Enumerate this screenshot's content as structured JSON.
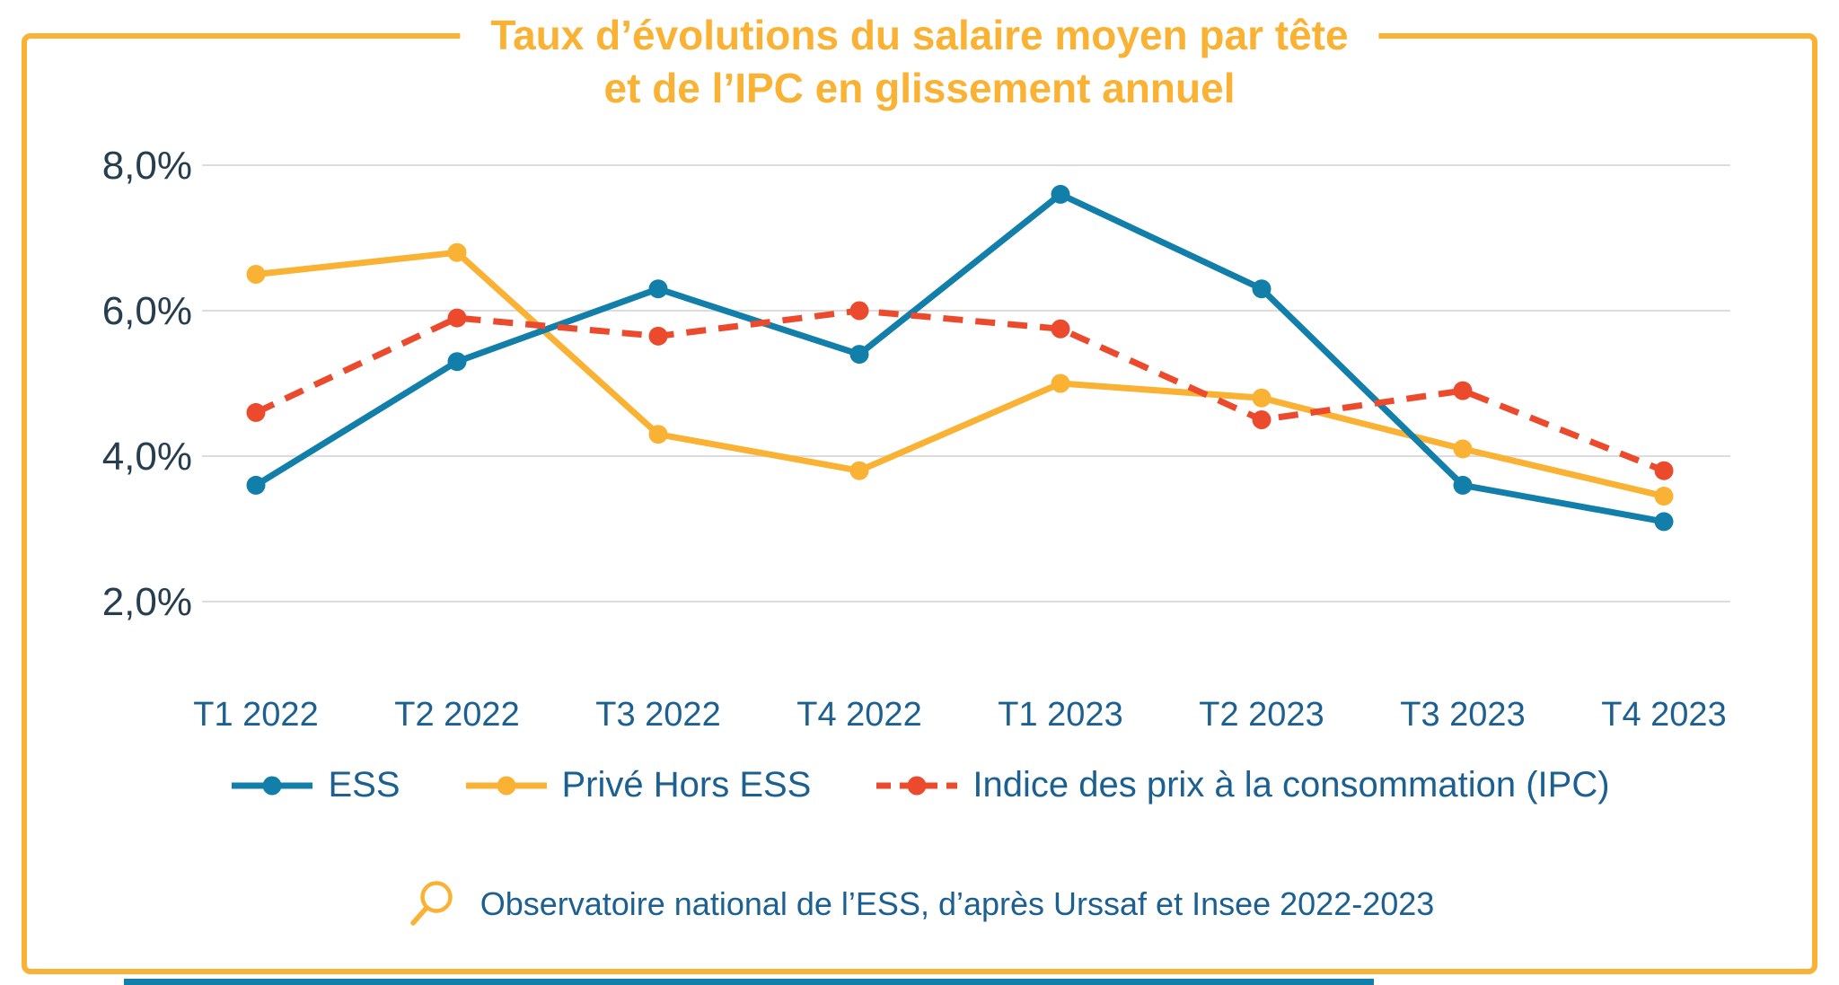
{
  "title": {
    "line1": "Taux d’évolutions du salaire moyen par tête",
    "line2": "et de l’IPC en glissement annuel"
  },
  "source": {
    "icon": "magnifier-icon",
    "text": "Observatoire national de l’ESS, d’après Urssaf et Insee 2022-2023"
  },
  "colors": {
    "accent_yellow": "#F9B233",
    "ess_blue": "#117FA9",
    "prive_yellow": "#F9B233",
    "ipc_red": "#EC4A2D",
    "grid": "#DCDCDC",
    "text_dark": "#263E50",
    "text_blue": "#1B6091"
  },
  "chart_data": {
    "type": "line",
    "title": "Taux d’évolutions du salaire moyen par tête et de l’IPC en glissement annuel",
    "xlabel": "",
    "ylabel": "",
    "categories": [
      "T1 2022",
      "T2 2022",
      "T3 2022",
      "T4 2022",
      "T1 2023",
      "T2 2023",
      "T3 2023",
      "T4 2023"
    ],
    "series": [
      {
        "name": "ESS",
        "color": "#117FA9",
        "style": "solid",
        "values": [
          3.6,
          5.3,
          6.3,
          5.4,
          7.6,
          6.3,
          3.6,
          3.1
        ]
      },
      {
        "name": "Privé Hors ESS",
        "color": "#F9B233",
        "style": "solid",
        "values": [
          6.5,
          6.8,
          4.3,
          3.8,
          5.0,
          4.8,
          4.1,
          3.45
        ]
      },
      {
        "name": "Indice des prix à la consommation (IPC)",
        "color": "#EC4A2D",
        "style": "dashed",
        "values": [
          4.6,
          5.9,
          5.65,
          6.0,
          5.75,
          4.5,
          4.9,
          3.8
        ]
      }
    ],
    "y_ticks": [
      8.0,
      6.0,
      4.0,
      2.0
    ],
    "y_tick_labels": [
      "8,0%",
      "6,0%",
      "4,0%",
      "2,0%"
    ],
    "ylim": [
      1.5,
      8.5
    ],
    "grid": "horizontal",
    "legend_position": "bottom"
  }
}
